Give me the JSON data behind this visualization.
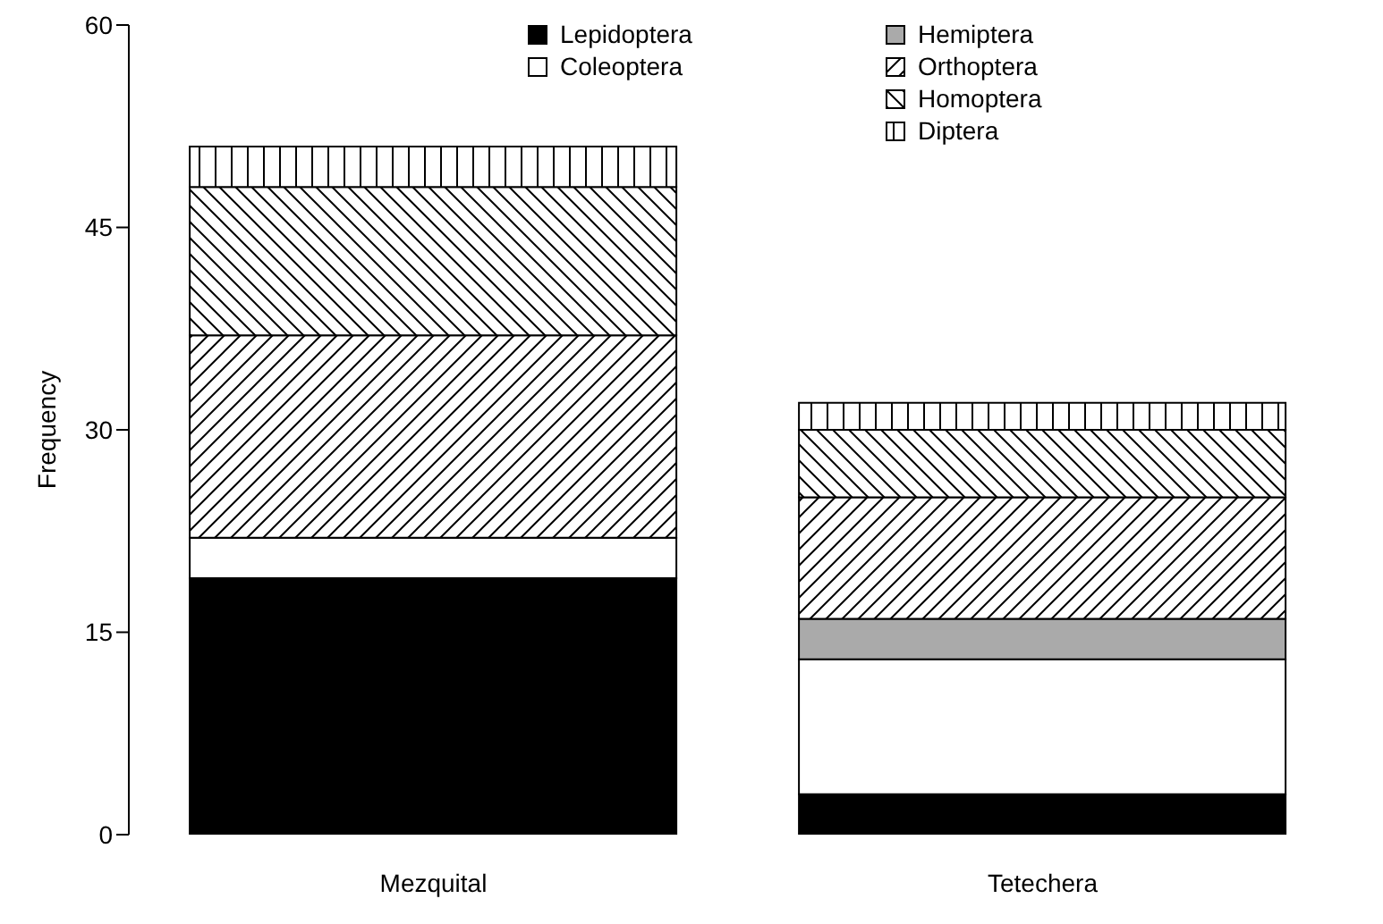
{
  "chart_data": {
    "type": "bar",
    "stacked": true,
    "ylabel": "Frequency",
    "categories": [
      "Mezquital",
      "Tetechera"
    ],
    "ylim": [
      0,
      60
    ],
    "yticks": [
      0,
      15,
      30,
      45,
      60
    ],
    "legend": "top",
    "series": [
      {
        "name": "Lepidoptera",
        "color": "#000000",
        "values": [
          19,
          3
        ]
      },
      {
        "name": "Coleoptera",
        "color": "#ffffff",
        "values": [
          3,
          10
        ]
      },
      {
        "name": "Hemiptera",
        "color": "#aaaaaa",
        "values": [
          0,
          3
        ]
      },
      {
        "name": "Orthoptera",
        "color": "#000000",
        "values": [
          15,
          9
        ]
      },
      {
        "name": "Homoptera",
        "color": "#000000",
        "values": [
          11,
          5
        ]
      },
      {
        "name": "Diptera",
        "color": "#000000",
        "values": [
          3,
          2
        ]
      }
    ]
  }
}
